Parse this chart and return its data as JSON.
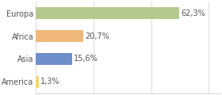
{
  "categories": [
    "Europa",
    "Africa",
    "Asia",
    "America"
  ],
  "values": [
    62.3,
    20.7,
    15.6,
    1.3
  ],
  "bar_colors": [
    "#b5c98e",
    "#f0b87a",
    "#6e8fc9",
    "#f5d57a"
  ],
  "labels": [
    "62,3%",
    "20,7%",
    "15,6%",
    "1,3%"
  ],
  "background_color": "#ffffff",
  "xlim": [
    0,
    80
  ],
  "bar_height": 0.5,
  "label_fontsize": 7.0,
  "tick_fontsize": 7.0,
  "grid_xticks": [
    0,
    25,
    50,
    75
  ]
}
